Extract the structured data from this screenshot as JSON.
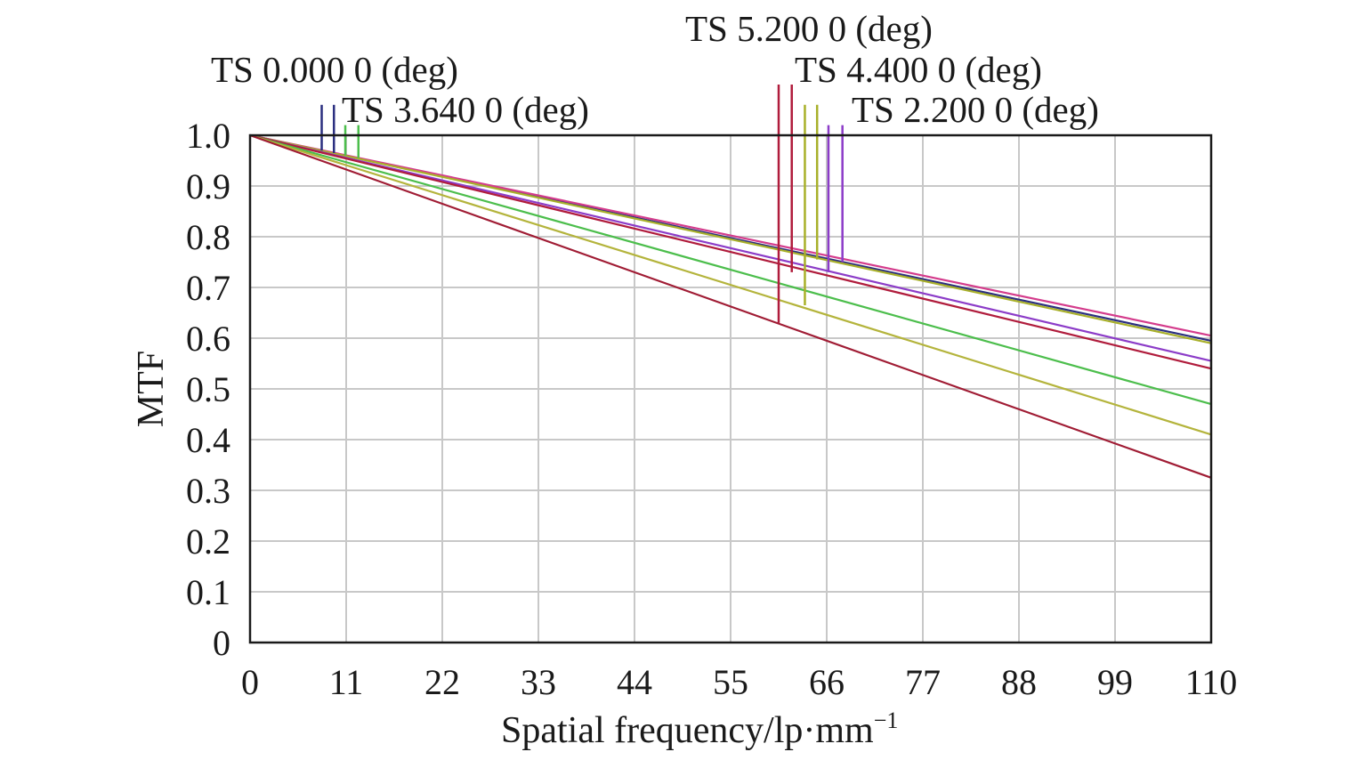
{
  "chart_data": {
    "type": "line",
    "title": "",
    "xlabel": "Spatial frequency/lp·mm",
    "xlabel_superscript": "−1",
    "ylabel": "MTF",
    "xlim": [
      0,
      110
    ],
    "ylim": [
      0,
      1.0
    ],
    "x_ticks": [
      "0",
      "11",
      "22",
      "33",
      "44",
      "55",
      "66",
      "77",
      "88",
      "99",
      "110"
    ],
    "y_ticks": [
      "0",
      "0.1",
      "0.2",
      "0.3",
      "0.4",
      "0.5",
      "0.6",
      "0.7",
      "0.8",
      "0.9",
      "1.0"
    ],
    "grid": true,
    "field_labels": [
      "TS 0.000 0 (deg)",
      "TS 3.640 0 (deg)",
      "TS 5.200 0 (deg)",
      "TS 4.400 0 (deg)",
      "TS 2.200 0 (deg)"
    ],
    "series": [
      {
        "color": "#2b2f80",
        "x": [
          0,
          110
        ],
        "y": [
          1.0,
          0.595
        ]
      },
      {
        "color": "#d43c8c",
        "x": [
          0,
          110
        ],
        "y": [
          1.0,
          0.605
        ]
      },
      {
        "color": "#a8b02a",
        "x": [
          0,
          110
        ],
        "y": [
          1.0,
          0.59
        ]
      },
      {
        "color": "#8c3cc8",
        "x": [
          0,
          110
        ],
        "y": [
          1.0,
          0.555
        ]
      },
      {
        "color": "#b01c3c",
        "x": [
          0,
          110
        ],
        "y": [
          1.0,
          0.54
        ]
      },
      {
        "color": "#4cbe4c",
        "x": [
          0,
          110
        ],
        "y": [
          1.0,
          0.47
        ]
      },
      {
        "color": "#b4b43c",
        "x": [
          0,
          110
        ],
        "y": [
          1.0,
          0.41
        ]
      },
      {
        "color": "#a01c34",
        "x": [
          0,
          110
        ],
        "y": [
          1.0,
          0.325
        ]
      }
    ],
    "field_markers": [
      {
        "label_index": 0,
        "color": "#2b2f80",
        "x": 8.2,
        "y_top": 1.06,
        "y_bottom": 0.97
      },
      {
        "label_index": 0,
        "color": "#2b2f80",
        "x": 9.6,
        "y_top": 1.06,
        "y_bottom": 0.965
      },
      {
        "label_index": 1,
        "color": "#4cbe4c",
        "x": 10.9,
        "y_top": 1.02,
        "y_bottom": 0.96
      },
      {
        "label_index": 1,
        "color": "#4cbe4c",
        "x": 12.4,
        "y_top": 1.02,
        "y_bottom": 0.955
      },
      {
        "label_index": 2,
        "color": "#b01c3c",
        "x": 60.5,
        "y_top": 1.1,
        "y_bottom": 0.63
      },
      {
        "label_index": 2,
        "color": "#b01c3c",
        "x": 62.0,
        "y_top": 1.1,
        "y_bottom": 0.73
      },
      {
        "label_index": 3,
        "color": "#a8b02a",
        "x": 63.5,
        "y_top": 1.06,
        "y_bottom": 0.665
      },
      {
        "label_index": 3,
        "color": "#a8b02a",
        "x": 64.9,
        "y_top": 1.06,
        "y_bottom": 0.755
      },
      {
        "label_index": 4,
        "color": "#8c3cc8",
        "x": 66.2,
        "y_top": 1.02,
        "y_bottom": 0.73
      },
      {
        "label_index": 4,
        "color": "#8c3cc8",
        "x": 67.8,
        "y_top": 1.02,
        "y_bottom": 0.75
      }
    ]
  }
}
